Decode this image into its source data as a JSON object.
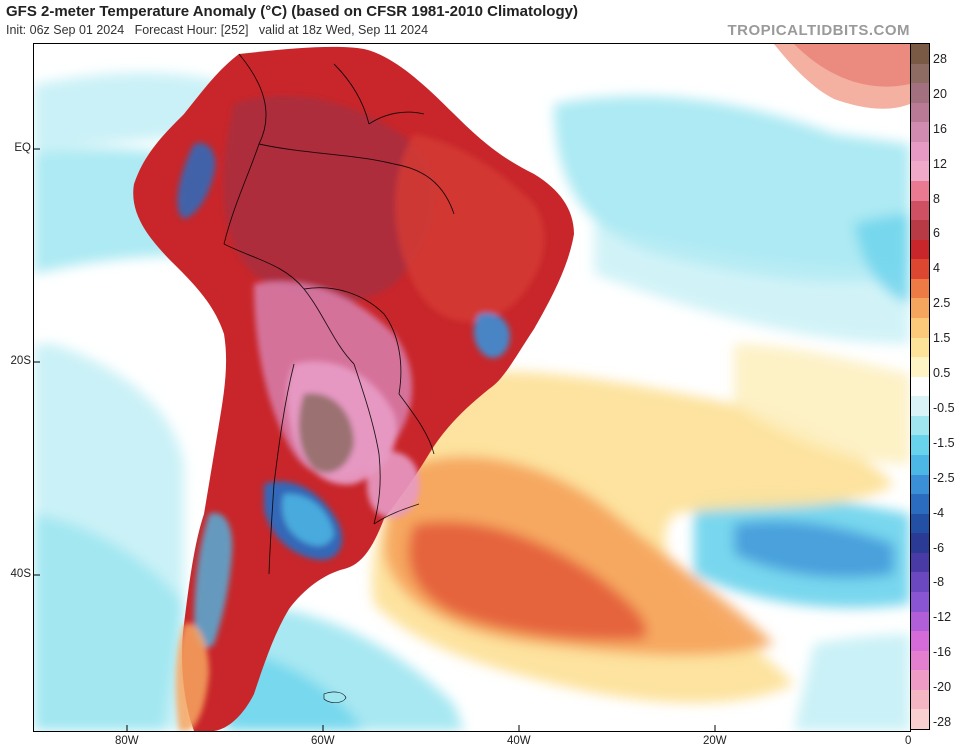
{
  "header": {
    "title": "GFS 2-meter Temperature Anomaly (°C) (based on CFSR 1981-2010 Climatology)",
    "subtitle": "Init: 06z Sep 01 2024   Forecast Hour: [252]   valid at 18z Wed, Sep 11 2024",
    "brand": "TROPICALTIDBITS.COM"
  },
  "axes": {
    "lat_labels": [
      "EQ",
      "20S",
      "40S"
    ],
    "lon_labels": [
      "80W",
      "60W",
      "40W",
      "20W",
      "0"
    ]
  },
  "colorbar": {
    "labels": [
      "28",
      "20",
      "16",
      "12",
      "8",
      "6",
      "4",
      "2.5",
      "1.5",
      "0.5",
      "-0.5",
      "-1.5",
      "-2.5",
      "-4",
      "-6",
      "-8",
      "-12",
      "-16",
      "-20",
      "-28"
    ],
    "colors": [
      "#7a5a44",
      "#8e6b63",
      "#a2707e",
      "#b97a95",
      "#d18ab0",
      "#e79ac4",
      "#f0a9c8",
      "#e97a91",
      "#cf5062",
      "#b83a44",
      "#c8262a",
      "#dd4630",
      "#ee7a46",
      "#f6a55f",
      "#fbc979",
      "#fde29a",
      "#fdf3c4",
      "#ffffff",
      "#d9f3f7",
      "#9fe6f1",
      "#6ad3ec",
      "#4cb6e4",
      "#3b8fd6",
      "#2c6cc0",
      "#2350a4",
      "#2b3a94",
      "#4a3aa6",
      "#6b47c0",
      "#8a55d2",
      "#b05fd8",
      "#d46bd8",
      "#e47ecf",
      "#ee9bc6",
      "#f5b6c4",
      "#f9cfd0"
    ]
  },
  "map_legend": {
    "colors": {
      "ocean_warm_1": "#fde29a",
      "ocean_warm_2": "#f6a55f",
      "ocean_warm_3": "#e35c3a",
      "ocean_cool_1": "#9fe6f1",
      "ocean_cool_2": "#6ad3ec",
      "ocean_cool_3": "#3b8fd6",
      "land_hot": "#c8262a",
      "land_hotter": "#a82e40",
      "land_pink": "#e79ac4",
      "land_brown": "#8e6b63",
      "land_cold": "#2c6cc0"
    }
  }
}
